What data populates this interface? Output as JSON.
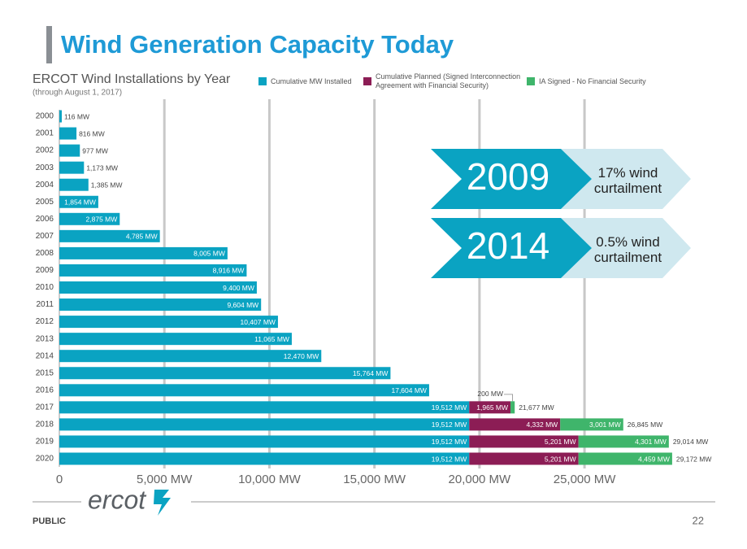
{
  "page": {
    "title": "Wind Generation Capacity Today",
    "logo": "ercot",
    "footer": "PUBLIC",
    "page_number": "22"
  },
  "callouts": [
    {
      "year": "2009",
      "text": "17% wind curtailment"
    },
    {
      "year": "2014",
      "text": "0.5% wind curtailment"
    }
  ],
  "chart_data": {
    "type": "bar",
    "orientation": "horizontal",
    "stacked": true,
    "title": "ERCOT Wind Installations by Year",
    "subtitle": "(through August 1, 2017)",
    "categories": [
      "2000",
      "2001",
      "2002",
      "2003",
      "2004",
      "2005",
      "2006",
      "2007",
      "2008",
      "2009",
      "2010",
      "2011",
      "2012",
      "2013",
      "2014",
      "2015",
      "2016",
      "2017",
      "2018",
      "2019",
      "2020"
    ],
    "series": [
      {
        "name": "Cumulative MW Installed",
        "color": "#0aa3c2",
        "values": [
          116,
          816,
          977,
          1173,
          1385,
          1854,
          2875,
          4785,
          8005,
          8916,
          9400,
          9604,
          10407,
          11065,
          12470,
          15764,
          17604,
          19512,
          19512,
          19512,
          19512
        ],
        "value_labels": [
          "116 MW",
          "816 MW",
          "977 MW",
          "1,173 MW",
          "1,385 MW",
          "1,854 MW",
          "2,875 MW",
          "4,785 MW",
          "8,005 MW",
          "8,916 MW",
          "9,400 MW",
          "9,604 MW",
          "10,407 MW",
          "11,065 MW",
          "12,470 MW",
          "15,764 MW",
          "17,604 MW",
          "19,512 MW",
          "19,512 MW",
          "19,512 MW",
          "19,512 MW"
        ]
      },
      {
        "name": "Cumulative Planned (Signed Interconnection Agreement with Financial Security)",
        "color": "#8c1d55",
        "values": [
          null,
          null,
          null,
          null,
          null,
          null,
          null,
          null,
          null,
          null,
          null,
          null,
          null,
          null,
          null,
          null,
          null,
          1965,
          4332,
          5201,
          5201
        ],
        "value_labels": [
          null,
          null,
          null,
          null,
          null,
          null,
          null,
          null,
          null,
          null,
          null,
          null,
          null,
          null,
          null,
          null,
          null,
          "1,965 MW",
          "4,332 MW",
          "5,201 MW",
          "5,201 MW"
        ]
      },
      {
        "name": "IA Signed - No Financial Security",
        "color": "#3fb56b",
        "values": [
          null,
          null,
          null,
          null,
          null,
          null,
          null,
          null,
          null,
          null,
          null,
          null,
          null,
          null,
          null,
          null,
          null,
          200,
          3001,
          4301,
          4459
        ],
        "value_labels": [
          null,
          null,
          null,
          null,
          null,
          null,
          null,
          null,
          null,
          null,
          null,
          null,
          null,
          null,
          null,
          null,
          null,
          "200 MW",
          "3,001 MW",
          "4,301 MW",
          "4,459 MW"
        ]
      }
    ],
    "totals": [
      null,
      null,
      null,
      null,
      null,
      null,
      null,
      null,
      null,
      null,
      null,
      null,
      null,
      null,
      null,
      null,
      null,
      21677,
      26845,
      29014,
      29172
    ],
    "total_labels": [
      null,
      null,
      null,
      null,
      null,
      null,
      null,
      null,
      null,
      null,
      null,
      null,
      null,
      null,
      null,
      null,
      null,
      "21,677 MW",
      "26,845 MW",
      "29,014 MW",
      "29,172 MW"
    ],
    "xlim": [
      0,
      32000
    ],
    "xticks": [
      0,
      {
        "value": 5000,
        "label": "5,000 MW"
      },
      {
        "value": 10000,
        "label": "10,000 MW"
      },
      {
        "value": 15000,
        "label": "15,000 MW"
      },
      {
        "value": 20000,
        "label": "20,000 MW"
      },
      {
        "value": 25000,
        "label": "25,000 MW"
      }
    ],
    "grid": true
  }
}
